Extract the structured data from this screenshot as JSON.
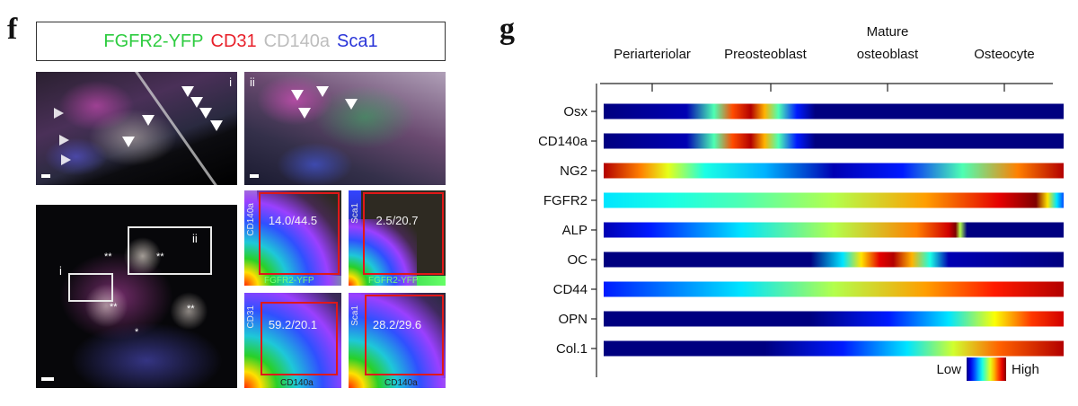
{
  "panel_f": {
    "letter": "f",
    "legend": {
      "fgfr2_yfp": "FGFR2-YFP",
      "cd31": "CD31",
      "cd140a": "CD140a",
      "sca1": "Sca1"
    },
    "inset_labels": {
      "i": "i",
      "ii": "ii"
    },
    "low_mag_marks": {
      "double_star": "**",
      "single_star": "*"
    },
    "facs_plots": [
      {
        "stat": "14.0/44.5",
        "y_axis": "CD140a",
        "x_axis": "FGFR2-YFP"
      },
      {
        "stat": "2.5/20.7",
        "y_axis": "Sca1",
        "x_axis": "FGFR2-YFP"
      },
      {
        "stat": "59.2/20.1",
        "y_axis": "CD31",
        "x_axis": "CD140a"
      },
      {
        "stat": "28.2/29.6",
        "y_axis": "Sca1",
        "x_axis": "CD140a"
      }
    ]
  },
  "panel_g": {
    "letter": "g",
    "stages": [
      "Periarteriolar",
      "Preosteoblast",
      "Mature",
      "osteoblast",
      "Osteocyte"
    ],
    "legend": {
      "low": "Low",
      "high": "High"
    }
  },
  "chart_data": {
    "type": "heatmap",
    "title": "",
    "x_categories": [
      "Periarteriolar",
      "Preosteoblast",
      "Mature osteoblast",
      "Osteocyte"
    ],
    "colorscale": "jet (blue = low, red = high)",
    "rows": [
      {
        "name": "Osx",
        "profile": [
          [
            0,
            0.0
          ],
          [
            0.18,
            0.05
          ],
          [
            0.24,
            0.45
          ],
          [
            0.28,
            0.8
          ],
          [
            0.32,
            0.95
          ],
          [
            0.35,
            0.7
          ],
          [
            0.38,
            0.45
          ],
          [
            0.42,
            0.15
          ],
          [
            0.46,
            0.0
          ],
          [
            1,
            0.0
          ]
        ]
      },
      {
        "name": "CD140a",
        "profile": [
          [
            0,
            0.0
          ],
          [
            0.18,
            0.05
          ],
          [
            0.24,
            0.45
          ],
          [
            0.28,
            0.8
          ],
          [
            0.32,
            0.95
          ],
          [
            0.35,
            0.7
          ],
          [
            0.38,
            0.45
          ],
          [
            0.42,
            0.15
          ],
          [
            0.46,
            0.0
          ],
          [
            1,
            0.0
          ]
        ]
      },
      {
        "name": "NG2",
        "profile": [
          [
            0,
            0.95
          ],
          [
            0.08,
            0.75
          ],
          [
            0.14,
            0.6
          ],
          [
            0.22,
            0.4
          ],
          [
            0.35,
            0.3
          ],
          [
            0.5,
            0.05
          ],
          [
            0.65,
            0.15
          ],
          [
            0.78,
            0.45
          ],
          [
            0.9,
            0.75
          ],
          [
            1,
            0.95
          ]
        ]
      },
      {
        "name": "FGFR2",
        "profile": [
          [
            0,
            0.35
          ],
          [
            0.15,
            0.4
          ],
          [
            0.3,
            0.45
          ],
          [
            0.5,
            0.55
          ],
          [
            0.7,
            0.72
          ],
          [
            0.86,
            0.9
          ],
          [
            0.94,
            1.0
          ],
          [
            0.965,
            0.65
          ],
          [
            0.985,
            0.35
          ],
          [
            1,
            0.2
          ]
        ]
      },
      {
        "name": "ALP",
        "profile": [
          [
            0,
            0.05
          ],
          [
            0.1,
            0.15
          ],
          [
            0.3,
            0.35
          ],
          [
            0.5,
            0.55
          ],
          [
            0.68,
            0.75
          ],
          [
            0.75,
            0.92
          ],
          [
            0.765,
            1.0
          ],
          [
            0.775,
            0.55
          ],
          [
            0.79,
            0.0
          ],
          [
            1,
            0.0
          ]
        ]
      },
      {
        "name": "OC",
        "profile": [
          [
            0,
            0.0
          ],
          [
            0.45,
            0.0
          ],
          [
            0.52,
            0.35
          ],
          [
            0.56,
            0.65
          ],
          [
            0.6,
            0.9
          ],
          [
            0.63,
            0.95
          ],
          [
            0.67,
            0.7
          ],
          [
            0.71,
            0.4
          ],
          [
            0.75,
            0.05
          ],
          [
            1,
            0.0
          ]
        ]
      },
      {
        "name": "CD44",
        "profile": [
          [
            0,
            0.15
          ],
          [
            0.15,
            0.25
          ],
          [
            0.3,
            0.35
          ],
          [
            0.5,
            0.55
          ],
          [
            0.7,
            0.72
          ],
          [
            0.85,
            0.85
          ],
          [
            1,
            0.95
          ]
        ]
      },
      {
        "name": "OPN",
        "profile": [
          [
            0,
            0.0
          ],
          [
            0.45,
            0.0
          ],
          [
            0.62,
            0.15
          ],
          [
            0.75,
            0.35
          ],
          [
            0.85,
            0.62
          ],
          [
            0.93,
            0.82
          ],
          [
            1,
            0.92
          ]
        ]
      },
      {
        "name": "Col.1",
        "profile": [
          [
            0,
            0.0
          ],
          [
            0.35,
            0.0
          ],
          [
            0.52,
            0.15
          ],
          [
            0.66,
            0.35
          ],
          [
            0.76,
            0.58
          ],
          [
            0.86,
            0.78
          ],
          [
            1,
            0.95
          ]
        ]
      }
    ]
  }
}
